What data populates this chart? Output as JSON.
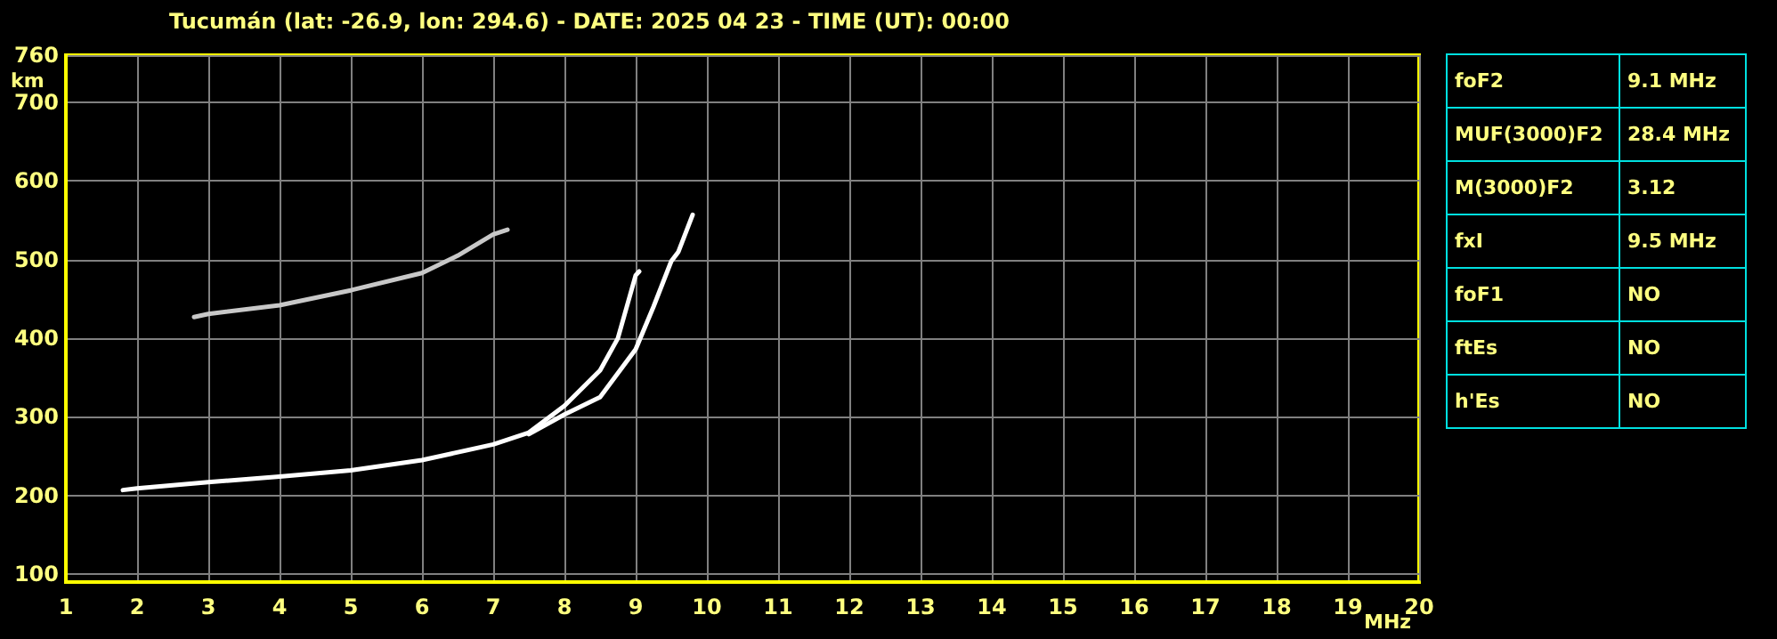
{
  "chart_data": [
    {
      "type": "line",
      "title": "Tucumán (lat: -26.9, lon: 294.6) - DATE: 2025 04 23 - TIME (UT): 00:00",
      "xlabel": "MHz",
      "ylabel": "km",
      "series": [
        {
          "color": "#ffffff",
          "x": [
            1.8,
            2,
            3,
            4,
            5,
            6,
            7,
            7.5,
            8,
            8.5,
            8.75,
            9,
            9.05
          ],
          "values": [
            207,
            209,
            217,
            224,
            232,
            245,
            265,
            280,
            314,
            359,
            400,
            480,
            485
          ]
        },
        {
          "color": "#ffffff",
          "x": [
            7.5,
            8,
            8.5,
            9,
            9.25,
            9.5,
            9.6,
            9.8
          ],
          "values": [
            278,
            303,
            325,
            386,
            440,
            498,
            510,
            557
          ]
        },
        {
          "color": "#c8c8c8",
          "x": [
            2.8,
            3,
            4,
            5,
            6,
            6.5,
            7,
            7.2
          ],
          "values": [
            427,
            431,
            442,
            461,
            483,
            505,
            532,
            538
          ]
        }
      ],
      "marker": "none",
      "line_style": "solid",
      "xlim": [
        1,
        20
      ],
      "ylim": [
        90,
        760
      ],
      "xticks": [
        1,
        2,
        3,
        4,
        5,
        6,
        7,
        8,
        9,
        10,
        11,
        12,
        13,
        14,
        15,
        16,
        17,
        18,
        19,
        20
      ],
      "yticks": [
        100,
        200,
        300,
        400,
        500,
        600,
        700,
        760
      ],
      "grid": true
    },
    {
      "type": "other",
      "annotations": [
        "foF2",
        "9.1 MHz",
        "MUF(3000)F2",
        "28.4 MHz",
        "M(3000)F2",
        "3.12",
        "fxI",
        "9.5 MHz",
        "foF1",
        "NO",
        "ftEs",
        "NO",
        "h'Es",
        "NO"
      ]
    }
  ]
}
